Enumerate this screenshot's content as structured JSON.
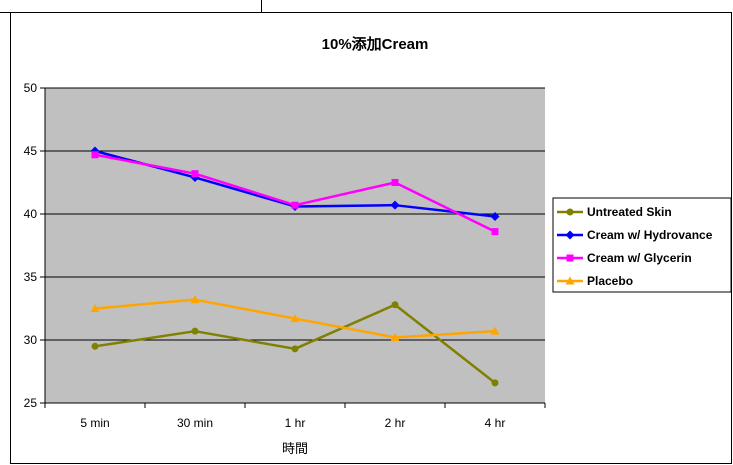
{
  "chart_data": {
    "type": "line",
    "title": "10%添加Cream",
    "xlabel": "時間",
    "ylabel": "",
    "categories": [
      "5 min",
      "30 min",
      "1 hr",
      "2 hr",
      "4 hr"
    ],
    "ylim": [
      25,
      50
    ],
    "yticks": [
      25,
      30,
      35,
      40,
      45,
      50
    ],
    "grid": true,
    "legend_position": "right",
    "series": [
      {
        "name": "Untreated Skin",
        "color": "#808000",
        "marker": "circle",
        "values": [
          29.5,
          30.7,
          29.3,
          32.8,
          26.6
        ]
      },
      {
        "name": "Cream w/ Hydrovance",
        "color": "#0000FF",
        "marker": "diamond",
        "values": [
          45.0,
          42.9,
          40.6,
          40.7,
          39.8
        ]
      },
      {
        "name": "Cream w/ Glycerin",
        "color": "#FF00FF",
        "marker": "square",
        "values": [
          44.7,
          43.2,
          40.7,
          42.5,
          38.6
        ]
      },
      {
        "name": "Placebo",
        "color": "#FFA500",
        "marker": "triangle",
        "values": [
          32.5,
          33.2,
          31.7,
          30.2,
          30.7
        ]
      }
    ]
  }
}
